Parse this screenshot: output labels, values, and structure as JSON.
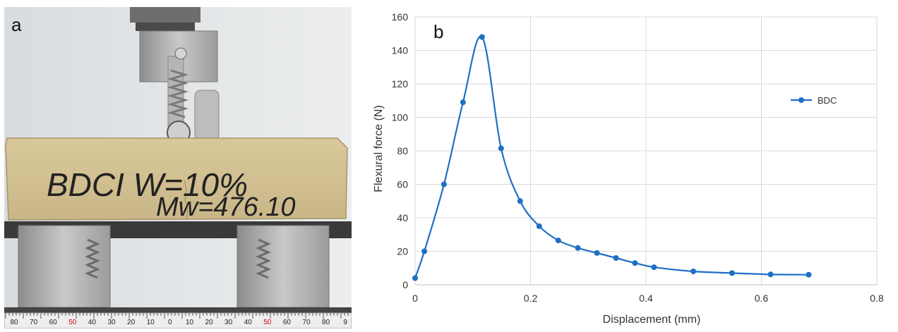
{
  "panel_a": {
    "label": "a",
    "handwriting_line1": "BDCI W=10%",
    "handwriting_line2": "Mw=476.10",
    "ruler_labels": [
      "80",
      "70",
      "60",
      "50",
      "40",
      "30",
      "20",
      "10",
      "0",
      "10",
      "20",
      "30",
      "40",
      "50",
      "60",
      "70",
      "80",
      "9"
    ]
  },
  "chart_data": {
    "type": "line",
    "panel_label": "b",
    "title": "",
    "xlabel": "Displacement (mm)",
    "ylabel": "Flexural force (N)",
    "xlim": [
      0,
      0.8
    ],
    "ylim": [
      0,
      160
    ],
    "xticks": [
      "0",
      "0.2",
      "0.4",
      "0.6",
      "0.8"
    ],
    "yticks": [
      "0",
      "20",
      "40",
      "60",
      "80",
      "100",
      "120",
      "140",
      "160"
    ],
    "grid": true,
    "legend_position": "right",
    "series": [
      {
        "name": "BDC",
        "color": "#1f6fc5",
        "x": [
          0,
          0.016,
          0.05,
          0.083,
          0.116,
          0.149,
          0.182,
          0.215,
          0.248,
          0.282,
          0.315,
          0.348,
          0.381,
          0.414,
          0.482,
          0.549,
          0.616,
          0.682
        ],
        "y": [
          4,
          20,
          60,
          109,
          148,
          81.5,
          50,
          35,
          26.5,
          22,
          19,
          16,
          13,
          10.5,
          8,
          7,
          6.2,
          6
        ]
      }
    ]
  }
}
